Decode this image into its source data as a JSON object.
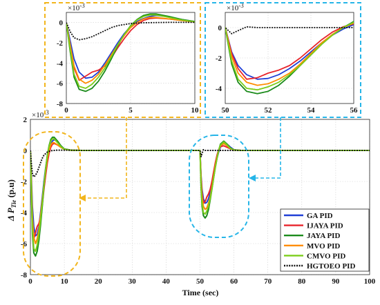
{
  "chart_data": [
    {
      "id": "main",
      "type": "line",
      "title": "",
      "xlabel": "Time (sec)",
      "ylabel": "Δ P_Tie (p.u)",
      "ylabel_main": "Δ P",
      "ylabel_sub": "Tie",
      "ylabel_unit": " (p.u)",
      "exponent": "×10",
      "exponent_power": "-3",
      "xlim": [
        0,
        100
      ],
      "ylim": [
        -8,
        2
      ],
      "xticks": [
        0,
        10,
        20,
        30,
        40,
        50,
        60,
        70,
        80,
        90,
        100
      ],
      "yticks": [
        2,
        0,
        -2,
        -4,
        -6,
        -8
      ],
      "grid": true,
      "legend_position": "bottom-right",
      "series": [
        {
          "name": "GA PID",
          "color": "#1f3fd6",
          "style": "solid",
          "x": [
            0,
            0.3,
            0.6,
            1.0,
            1.5,
            2.0,
            2.5,
            3.0,
            3.5,
            4.0,
            4.5,
            5.0,
            5.5,
            6.0,
            6.5,
            7.0,
            8.0,
            9.0,
            10.0,
            12,
            15,
            50,
            50.3,
            50.6,
            51.0,
            51.5,
            52.0,
            52.5,
            53.0,
            53.5,
            54.0,
            54.5,
            55.0,
            55.5,
            56.0,
            57,
            58,
            59,
            60,
            62,
            65,
            100
          ],
          "y": [
            0,
            -1.8,
            -3.6,
            -4.9,
            -5.5,
            -5.4,
            -4.9,
            -4.0,
            -3.0,
            -2.0,
            -1.1,
            -0.4,
            0.1,
            0.4,
            0.6,
            0.7,
            0.55,
            0.3,
            0.1,
            0.02,
            0,
            0,
            -1.6,
            -2.5,
            -3.1,
            -3.4,
            -3.35,
            -3.1,
            -2.7,
            -2.2,
            -1.6,
            -1.0,
            -0.5,
            -0.1,
            0.2,
            0.5,
            0.4,
            0.2,
            0.05,
            0,
            0,
            0
          ]
        },
        {
          "name": "IJAYA PID",
          "color": "#e8242b",
          "style": "solid",
          "x": [
            0,
            0.3,
            0.6,
            1.0,
            1.5,
            2.0,
            2.5,
            3.0,
            3.5,
            4.0,
            4.5,
            5.0,
            5.5,
            6.0,
            6.5,
            7.0,
            8.0,
            9.0,
            10.0,
            12,
            15,
            50,
            50.3,
            50.6,
            51.0,
            51.5,
            52.0,
            52.5,
            53.0,
            53.5,
            54.0,
            54.5,
            55.0,
            55.5,
            56.0,
            57,
            58,
            59,
            60,
            62,
            65,
            100
          ],
          "y": [
            0,
            -2.4,
            -4.5,
            -5.7,
            -5.3,
            -4.9,
            -4.7,
            -4.3,
            -3.5,
            -2.5,
            -1.6,
            -0.8,
            -0.2,
            0.2,
            0.4,
            0.45,
            0.35,
            0.2,
            0.08,
            0.01,
            0,
            0,
            -1.7,
            -2.7,
            -3.4,
            -3.3,
            -3.0,
            -2.8,
            -2.5,
            -2.0,
            -1.4,
            -0.8,
            -0.3,
            0.05,
            0.25,
            0.3,
            0.2,
            0.1,
            0.03,
            0,
            0,
            0
          ]
        },
        {
          "name": "JAYA PID",
          "color": "#1a8a1a",
          "style": "solid",
          "x": [
            0,
            0.3,
            0.6,
            1.0,
            1.5,
            2.0,
            2.5,
            3.0,
            3.5,
            4.0,
            4.5,
            5.0,
            5.5,
            6.0,
            6.5,
            7.0,
            8.0,
            9.0,
            10.0,
            12,
            15,
            50,
            50.3,
            50.6,
            51.0,
            51.5,
            52.0,
            52.5,
            53.0,
            53.5,
            54.0,
            54.5,
            55.0,
            55.5,
            56.0,
            57,
            58,
            59,
            60,
            62,
            65,
            100
          ],
          "y": [
            0,
            -2.9,
            -5.4,
            -6.6,
            -6.8,
            -6.5,
            -5.8,
            -4.8,
            -3.6,
            -2.3,
            -1.2,
            -0.3,
            0.3,
            0.7,
            0.85,
            0.85,
            0.6,
            0.3,
            0.1,
            0.02,
            0,
            0,
            -2.4,
            -3.6,
            -4.2,
            -4.35,
            -4.2,
            -3.8,
            -3.2,
            -2.5,
            -1.8,
            -1.1,
            -0.5,
            0,
            0.4,
            0.6,
            0.4,
            0.15,
            0.03,
            0,
            0,
            0
          ]
        },
        {
          "name": "MVO PID",
          "color": "#ff8c00",
          "style": "solid",
          "x": [
            0,
            0.3,
            0.6,
            1.0,
            1.5,
            2.0,
            2.5,
            3.0,
            3.5,
            4.0,
            4.5,
            5.0,
            5.5,
            6.0,
            6.5,
            7.0,
            8.0,
            9.0,
            10.0,
            12,
            15,
            50,
            50.3,
            50.6,
            51.0,
            51.5,
            52.0,
            52.5,
            53.0,
            53.5,
            54.0,
            54.5,
            55.0,
            55.5,
            56.0,
            57,
            58,
            59,
            60,
            62,
            65,
            100
          ],
          "y": [
            0,
            -2.2,
            -4.3,
            -5.6,
            -6.0,
            -5.7,
            -5.1,
            -4.2,
            -3.2,
            -2.2,
            -1.3,
            -0.5,
            0,
            0.35,
            0.5,
            0.5,
            0.35,
            0.2,
            0.07,
            0.01,
            0,
            0,
            -1.9,
            -3.0,
            -3.6,
            -3.8,
            -3.7,
            -3.4,
            -3.0,
            -2.4,
            -1.7,
            -1.0,
            -0.45,
            0,
            0.3,
            0.45,
            0.3,
            0.12,
            0.03,
            0,
            0,
            0
          ]
        },
        {
          "name": "CMVO PID",
          "color": "#7ccd1a",
          "style": "solid",
          "x": [
            0,
            0.3,
            0.6,
            1.0,
            1.5,
            2.0,
            2.5,
            3.0,
            3.5,
            4.0,
            4.5,
            5.0,
            5.5,
            6.0,
            6.5,
            7.0,
            8.0,
            9.0,
            10.0,
            12,
            15,
            50,
            50.3,
            50.6,
            51.0,
            51.5,
            52.0,
            52.5,
            53.0,
            53.5,
            54.0,
            54.5,
            55.0,
            55.5,
            56.0,
            57,
            58,
            59,
            60,
            62,
            65,
            100
          ],
          "y": [
            0,
            -2.7,
            -5.1,
            -6.3,
            -6.5,
            -6.1,
            -5.4,
            -4.5,
            -3.4,
            -2.2,
            -1.2,
            -0.35,
            0.25,
            0.6,
            0.75,
            0.75,
            0.5,
            0.25,
            0.08,
            0.01,
            0,
            0,
            -2.2,
            -3.4,
            -4.0,
            -4.1,
            -3.9,
            -3.6,
            -3.1,
            -2.5,
            -1.8,
            -1.1,
            -0.5,
            0,
            0.35,
            0.55,
            0.35,
            0.12,
            0.03,
            0,
            0,
            0
          ]
        },
        {
          "name": "HGTOEO PID",
          "color": "#111111",
          "style": "dotted",
          "x": [
            0,
            0.3,
            0.6,
            1.0,
            1.5,
            2.0,
            2.5,
            3.0,
            3.5,
            4.0,
            5.0,
            6.0,
            7.0,
            8.0,
            10.0,
            15,
            50,
            50.3,
            50.6,
            51.0,
            51.5,
            52.0,
            53,
            56,
            100
          ],
          "y": [
            0,
            -0.9,
            -1.5,
            -1.7,
            -1.6,
            -1.4,
            -1.1,
            -0.8,
            -0.5,
            -0.3,
            -0.1,
            -0.02,
            0,
            0.02,
            0.02,
            0,
            0,
            -0.4,
            -0.2,
            0.05,
            0,
            0,
            0,
            0,
            0
          ]
        }
      ]
    },
    {
      "id": "inset-left",
      "type": "line",
      "exponent": "×10",
      "exponent_power": "-3",
      "xlim": [
        0,
        10
      ],
      "ylim": [
        -8,
        1
      ],
      "xticks": [
        0,
        5,
        10
      ],
      "yticks": [
        0,
        -2,
        -4,
        -6,
        -8
      ],
      "grid": true
    },
    {
      "id": "inset-right",
      "type": "line",
      "exponent": "×10",
      "exponent_power": "-3",
      "xlim": [
        50,
        56
      ],
      "ylim": [
        -5,
        1
      ],
      "xticks": [
        50,
        52,
        54,
        56
      ],
      "yticks": [
        0,
        -2,
        -4
      ],
      "grid": true
    }
  ],
  "colors": {
    "zoom_left": "#f2b51c",
    "zoom_right": "#25b5e8"
  }
}
